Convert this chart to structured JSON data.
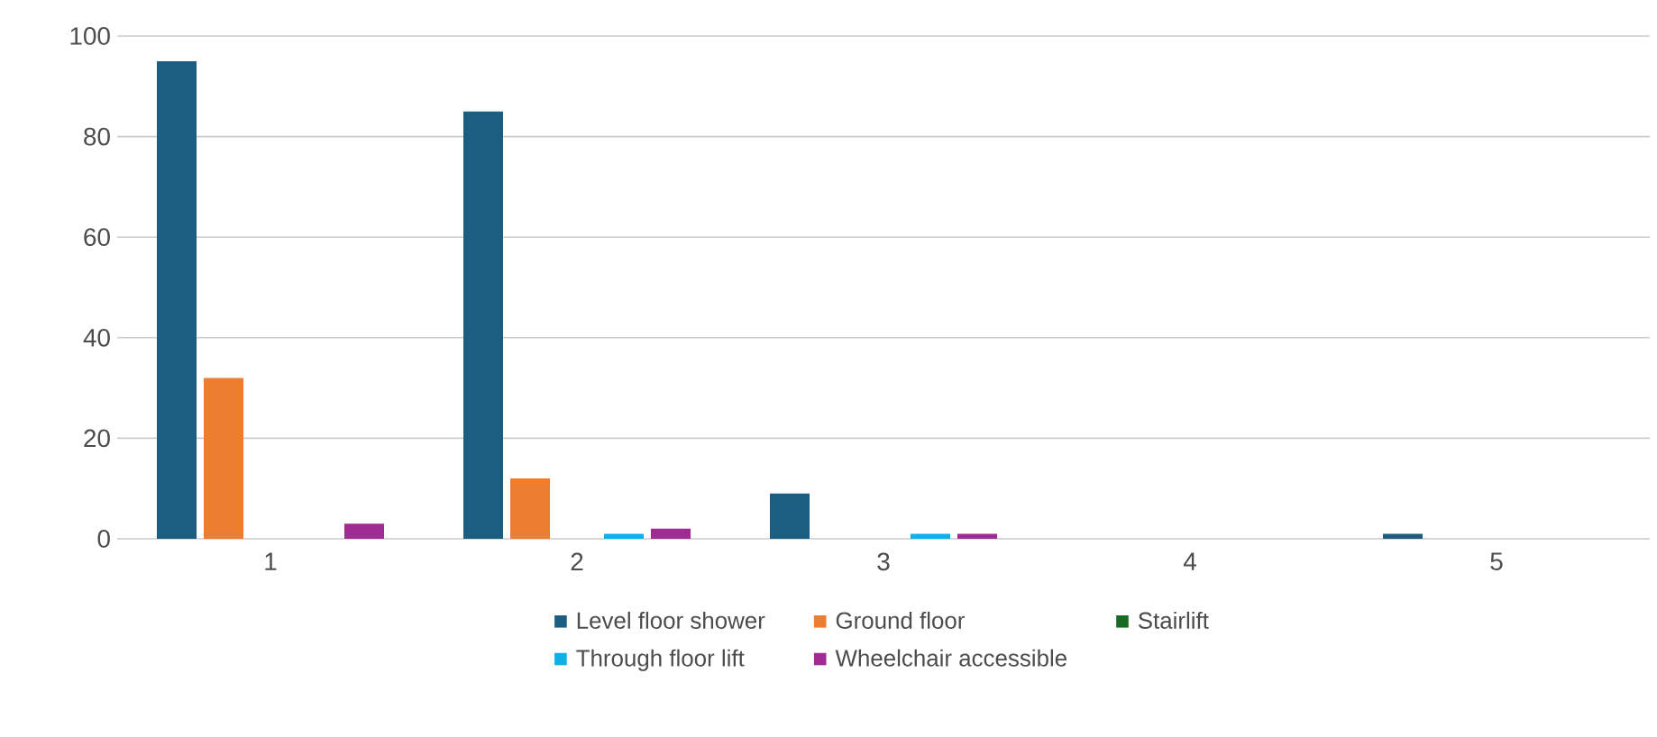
{
  "chart_data": {
    "type": "bar",
    "categories": [
      "1",
      "2",
      "3",
      "4",
      "5"
    ],
    "series": [
      {
        "name": "Level floor shower",
        "color": "#1b5e82",
        "values": [
          95,
          85,
          9,
          0,
          1
        ]
      },
      {
        "name": "Ground floor",
        "color": "#ed7d31",
        "values": [
          32,
          12,
          0,
          0,
          0
        ]
      },
      {
        "name": "Stairlift",
        "color": "#196b24",
        "values": [
          0,
          0,
          0,
          0,
          0
        ]
      },
      {
        "name": "Through floor lift",
        "color": "#0fb0e6",
        "values": [
          0,
          1,
          1,
          0,
          0
        ]
      },
      {
        "name": "Wheelchair accessible",
        "color": "#a02b93",
        "values": [
          3,
          2,
          1,
          0,
          0
        ]
      }
    ],
    "ylim": [
      0,
      100
    ],
    "yticks": [
      0,
      20,
      40,
      60,
      80,
      100
    ],
    "grid": "y",
    "legend": "bottom"
  }
}
